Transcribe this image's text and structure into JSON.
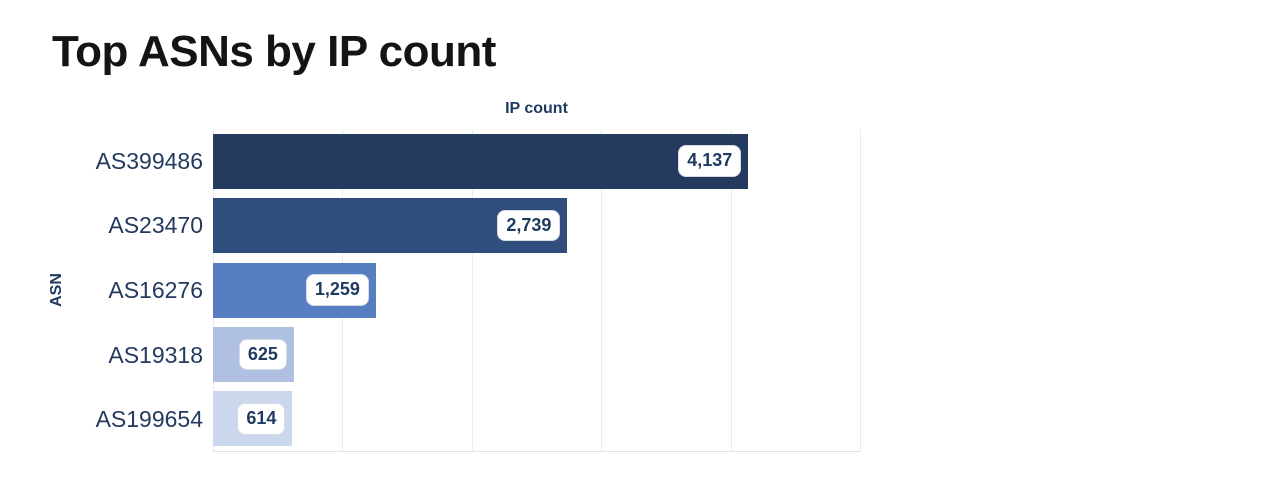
{
  "chart_data": {
    "type": "bar",
    "orientation": "horizontal",
    "title": "Top ASNs by IP count",
    "xlabel": "IP count",
    "ylabel": "ASN",
    "categories": [
      "AS399486",
      "AS23470",
      "AS16276",
      "AS19318",
      "AS199654"
    ],
    "values": [
      4137,
      2739,
      1259,
      625,
      614
    ],
    "value_labels": [
      "4,137",
      "2,739",
      "1,259",
      "625",
      "614"
    ],
    "xlim": [
      0,
      5000
    ],
    "gridline_interval": 1000,
    "grid": true,
    "legend": false,
    "x_tick_labels_shown": false,
    "bar_colors": [
      "#243a5e",
      "#2f4e7e",
      "#587ec2",
      "#afc0e2",
      "#cbd7ec"
    ]
  },
  "colors": {
    "background": "#ffffff",
    "title_text": "#141414",
    "axis_title_text": "#1f3a5f",
    "tick_label_text": "#24395e",
    "value_text": "#1f3a5f",
    "gridline": "#e6ebf4",
    "baseline": "#dde3ee",
    "value_box_bg": "#ffffff",
    "value_box_border": "#d7dbe4"
  }
}
